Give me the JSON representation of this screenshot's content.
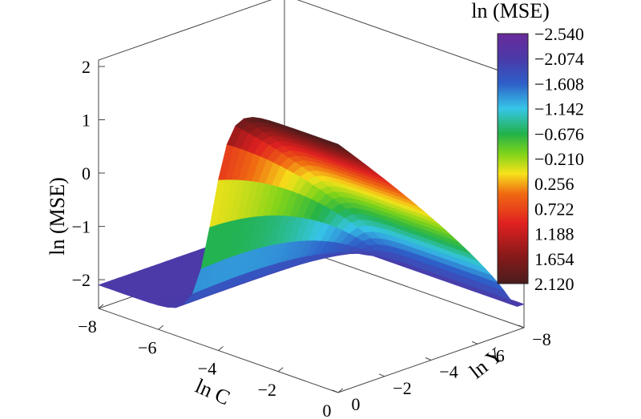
{
  "chart_data": {
    "type": "surface3d",
    "title": "",
    "z_axis": {
      "label": "ln (MSE)",
      "ticks": [
        "−2",
        "−1",
        "0",
        "1",
        "2"
      ],
      "range": [
        -2.54,
        2.12
      ]
    },
    "x_axis": {
      "label": "ln C",
      "ticks": [
        "−8",
        "−6",
        "−4",
        "−2",
        "0"
      ],
      "range": [
        -8,
        0
      ]
    },
    "y_axis": {
      "label": "ln Y",
      "ticks": [
        "−8",
        "−6",
        "−4",
        "−2",
        "0"
      ],
      "range": [
        -8,
        0
      ]
    },
    "colorbar": {
      "title": "ln (MSE)",
      "labels": [
        "−2.540",
        "−2.074",
        "−1.608",
        "−1.142",
        "−0.676",
        "−0.210",
        "0.256",
        "0.722",
        "1.188",
        "1.654",
        "2.120"
      ],
      "colormap": [
        "#4a1c1c",
        "#8e1a1a",
        "#e02020",
        "#f06a12",
        "#f7e21a",
        "#7ed31a",
        "#22b24a",
        "#36c6e8",
        "#2e5fc8",
        "#4a3aa8",
        "#6a2a9a"
      ]
    },
    "surface": {
      "low_plateau_value": -2.1,
      "high_plateau_value": 2.12,
      "description_values": "near-constant ~-2.1 for ln C below about -4, rising steeply to ~2.1 along ln Y"
    }
  }
}
